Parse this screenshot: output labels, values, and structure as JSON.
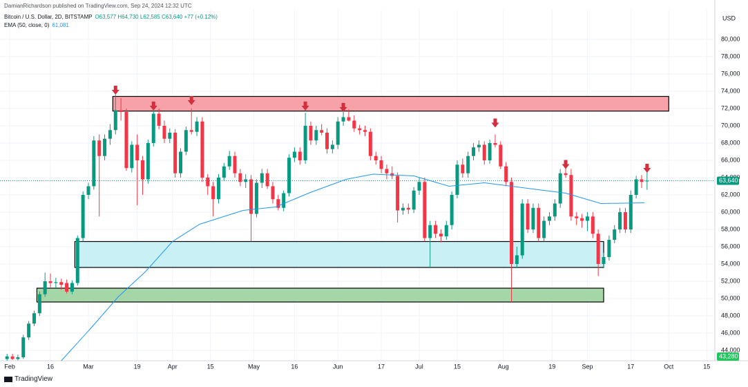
{
  "attribution": "DamianRichardson published on TradingView.com, Sep 24, 2024 12:32 UTC",
  "logo": "TradingView",
  "chart_data": {
    "type": "candlestick",
    "symbol": "Bitcoin / U.S. Dollar, 2D, BITSTAMP",
    "ohlc": "O63,577 H64,730 L62,585 C63,640 +77 (+0.12%)",
    "currency": "USD",
    "up_color": "#089981",
    "down_color": "#f23645",
    "grid": true,
    "xlim": [
      28.4,
      292
    ],
    "ylim": [
      42800,
      83440
    ],
    "yticks": [
      {
        "value": 44000,
        "label": "44,000"
      },
      {
        "value": 46000,
        "label": "46,000"
      },
      {
        "value": 48000,
        "label": "48,000"
      },
      {
        "value": 50000,
        "label": "50,000"
      },
      {
        "value": 52000,
        "label": "52,000"
      },
      {
        "value": 54000,
        "label": "54,000"
      },
      {
        "value": 56000,
        "label": "56,000"
      },
      {
        "value": 58000,
        "label": "58,000"
      },
      {
        "value": 60000,
        "label": "60,000"
      },
      {
        "value": 62000,
        "label": "62,000"
      },
      {
        "value": 64000,
        "label": "64,000"
      },
      {
        "value": 66000,
        "label": "66,000"
      },
      {
        "value": 68000,
        "label": "68,000"
      },
      {
        "value": 70000,
        "label": "70,000"
      },
      {
        "value": 72000,
        "label": "72,000"
      },
      {
        "value": 74000,
        "label": "74,000"
      },
      {
        "value": 76000,
        "label": "76,000"
      },
      {
        "value": 78000,
        "label": "78,000"
      },
      {
        "value": 80000,
        "label": "80,000"
      }
    ],
    "xticks": [
      {
        "value": 32,
        "label": "Feb"
      },
      {
        "value": 47,
        "label": "16"
      },
      {
        "value": 61,
        "label": "Mar"
      },
      {
        "value": 79,
        "label": "19"
      },
      {
        "value": 92,
        "label": "Apr"
      },
      {
        "value": 106,
        "label": "15"
      },
      {
        "value": 122,
        "label": "May"
      },
      {
        "value": 137,
        "label": "16"
      },
      {
        "value": 153,
        "label": "Jun"
      },
      {
        "value": 169,
        "label": "17"
      },
      {
        "value": 183,
        "label": "Jul"
      },
      {
        "value": 197,
        "label": "15"
      },
      {
        "value": 214,
        "label": "Aug"
      },
      {
        "value": 232,
        "label": "19"
      },
      {
        "value": 245,
        "label": "Sep"
      },
      {
        "value": 261,
        "label": "17"
      },
      {
        "value": 275,
        "label": "Oct"
      },
      {
        "value": 289,
        "label": "15"
      }
    ],
    "x": [
      31,
      33,
      35,
      37,
      39,
      41,
      43,
      45,
      47,
      49,
      51,
      53,
      55,
      57,
      59,
      61,
      63,
      65,
      67,
      69,
      71,
      73,
      75,
      77,
      79,
      81,
      83,
      85,
      87,
      89,
      91,
      93,
      95,
      97,
      99,
      101,
      103,
      105,
      107,
      109,
      111,
      113,
      115,
      117,
      119,
      121,
      123,
      125,
      127,
      129,
      131,
      133,
      135,
      137,
      139,
      141,
      143,
      145,
      147,
      149,
      151,
      153,
      155,
      157,
      159,
      161,
      163,
      165,
      167,
      169,
      171,
      173,
      175,
      177,
      179,
      181,
      183,
      185,
      187,
      189,
      191,
      193,
      195,
      197,
      199,
      201,
      203,
      205,
      207,
      209,
      211,
      213,
      215,
      217,
      219,
      221,
      223,
      225,
      227,
      229,
      231,
      233,
      235,
      237,
      239,
      241,
      243,
      245,
      247,
      249,
      251,
      253,
      255,
      257,
      259,
      261,
      263,
      265,
      267
    ],
    "open": [
      43000,
      43300,
      43000,
      43200,
      45500,
      47100,
      48300,
      50500,
      52000,
      51800,
      51900,
      51800,
      50800,
      51800,
      57000,
      62000,
      63000,
      68300,
      66500,
      68500,
      69500,
      71800,
      71600,
      65100,
      67800,
      66000,
      63800,
      68000,
      71400,
      70000,
      68500,
      69200,
      64500,
      67000,
      69500,
      69300,
      70500,
      64000,
      63000,
      61500,
      64000,
      65300,
      66500,
      64500,
      63500,
      63800,
      59800,
      63400,
      64500,
      63000,
      61500,
      60500,
      62200,
      66300,
      67000,
      66000,
      70000,
      68300,
      69500,
      69200,
      67300,
      67800,
      70500,
      71000,
      70600,
      69700,
      69500,
      69300,
      66500,
      66000,
      65000,
      64500,
      64200,
      60200,
      60500,
      60300,
      62500,
      63500,
      57000,
      58500,
      57500,
      57200,
      58500,
      62000,
      65500,
      64500,
      66500,
      67500,
      67800,
      66000,
      68000,
      67800,
      65300,
      63500,
      54000,
      55000,
      61000,
      58000,
      60500,
      57000,
      59000,
      59500,
      61000,
      64500,
      64300,
      59500,
      59300,
      59000,
      59500,
      57500,
      54000,
      54800,
      56800,
      58000,
      60000,
      58000,
      62000,
      63800,
      63577
    ],
    "high": [
      43600,
      43600,
      43500,
      45800,
      47400,
      48600,
      50800,
      53000,
      52900,
      52400,
      52300,
      52200,
      52100,
      57300,
      62400,
      63400,
      68800,
      69000,
      69000,
      70200,
      73600,
      73200,
      72000,
      68200,
      69000,
      66500,
      68400,
      71800,
      72000,
      70600,
      69700,
      69600,
      67400,
      69900,
      72000,
      71000,
      71000,
      64400,
      63500,
      64400,
      65700,
      67100,
      67000,
      65000,
      64400,
      64300,
      63800,
      65000,
      65000,
      63500,
      62000,
      62500,
      66700,
      67500,
      67500,
      71500,
      70500,
      70000,
      70200,
      69700,
      68300,
      71000,
      71800,
      71900,
      71200,
      70100,
      70000,
      69700,
      67000,
      66500,
      65500,
      65300,
      64600,
      61000,
      61000,
      62900,
      64000,
      64000,
      59000,
      59000,
      58000,
      59000,
      62400,
      66000,
      66200,
      67000,
      68000,
      68300,
      68200,
      68400,
      69000,
      68200,
      65800,
      64000,
      56000,
      61500,
      61500,
      61000,
      61000,
      59500,
      60000,
      61500,
      65000,
      65300,
      65000,
      60000,
      59800,
      60000,
      60000,
      58000,
      55300,
      57300,
      58500,
      60500,
      60500,
      62500,
      64200,
      64300,
      64730
    ],
    "low": [
      42800,
      42900,
      42850,
      43000,
      45200,
      46800,
      48000,
      50200,
      51300,
      51200,
      51000,
      50600,
      50500,
      51500,
      56600,
      61500,
      62600,
      59500,
      66000,
      67800,
      69000,
      70600,
      64800,
      64600,
      60800,
      62000,
      63300,
      67600,
      69600,
      68000,
      68000,
      64000,
      64000,
      66600,
      69000,
      68800,
      63500,
      62000,
      59500,
      61000,
      63600,
      64900,
      64000,
      63000,
      62800,
      56600,
      59400,
      62800,
      62700,
      61000,
      60200,
      60100,
      61800,
      65800,
      65500,
      65600,
      67800,
      67800,
      68900,
      66800,
      66800,
      67300,
      70000,
      70500,
      69300,
      69000,
      68800,
      66000,
      65500,
      64500,
      63800,
      63800,
      58800,
      59700,
      59800,
      59900,
      62000,
      56600,
      53600,
      57000,
      56500,
      56800,
      58000,
      61600,
      64000,
      64000,
      66000,
      67000,
      65500,
      65600,
      67500,
      65000,
      63000,
      49600,
      53600,
      54600,
      57600,
      57600,
      56600,
      56600,
      58500,
      59000,
      60500,
      64000,
      59000,
      58500,
      58200,
      57800,
      57000,
      52600,
      53600,
      54400,
      56400,
      57600,
      57600,
      57600,
      61600,
      62800,
      62585
    ],
    "close": [
      43300,
      43000,
      43200,
      45500,
      47100,
      48300,
      50500,
      52000,
      51800,
      51900,
      51600,
      50800,
      51800,
      57000,
      62000,
      63000,
      68300,
      66500,
      68500,
      69500,
      71800,
      71600,
      65100,
      67800,
      66000,
      63800,
      68000,
      71400,
      70000,
      68500,
      69200,
      64500,
      67000,
      69500,
      69300,
      70500,
      64000,
      63000,
      61500,
      64000,
      65300,
      66500,
      64500,
      63500,
      63800,
      59800,
      63400,
      64500,
      63000,
      61500,
      60500,
      62200,
      66300,
      67000,
      66000,
      70000,
      68300,
      69500,
      69200,
      67300,
      67800,
      70500,
      71000,
      70600,
      69700,
      69500,
      69300,
      66500,
      66000,
      65000,
      64500,
      64200,
      60200,
      60500,
      60300,
      62500,
      63500,
      57000,
      58500,
      57500,
      57200,
      58500,
      62000,
      65500,
      64500,
      66500,
      67500,
      67800,
      66000,
      68000,
      67800,
      65300,
      63500,
      54000,
      55000,
      61000,
      58000,
      60500,
      57000,
      59000,
      59500,
      61000,
      64500,
      64300,
      59500,
      59300,
      59000,
      59500,
      57500,
      54000,
      54800,
      56800,
      58000,
      60000,
      58000,
      62000,
      63800,
      63500,
      63640
    ],
    "ema": {
      "name": "EMA (50, close, 0)",
      "value_label": "61,081",
      "color": "#2196f3",
      "x": [
        51,
        62,
        72,
        82,
        92,
        102,
        118,
        130,
        143,
        156,
        166,
        181,
        194,
        207,
        222,
        237,
        250,
        266
      ],
      "values": [
        42800,
        46600,
        50200,
        53100,
        56600,
        58600,
        60200,
        60600,
        62300,
        63800,
        64400,
        64200,
        63000,
        63400,
        62800,
        62200,
        61000,
        61081
      ]
    },
    "zones": [
      {
        "x": [
          70,
          275
        ],
        "y": [
          71700,
          73400
        ],
        "color": "#f7a1a9"
      },
      {
        "x": [
          56,
          251
        ],
        "y": [
          53600,
          56600
        ],
        "color": "#c9f1f5"
      },
      {
        "x": [
          42,
          251
        ],
        "y": [
          49600,
          51200
        ],
        "color": "#a5d6a7"
      }
    ],
    "markers": {
      "color": "#d32f3f",
      "x": [
        71,
        85,
        99,
        141,
        155,
        211,
        237,
        267
      ],
      "y": [
        73600,
        71760,
        72400,
        71760,
        71600,
        69800,
        65000,
        64560
      ]
    },
    "price_tags": [
      {
        "value": 63640,
        "label": "63,640"
      },
      {
        "value": 43280,
        "label": "43,280"
      }
    ]
  }
}
